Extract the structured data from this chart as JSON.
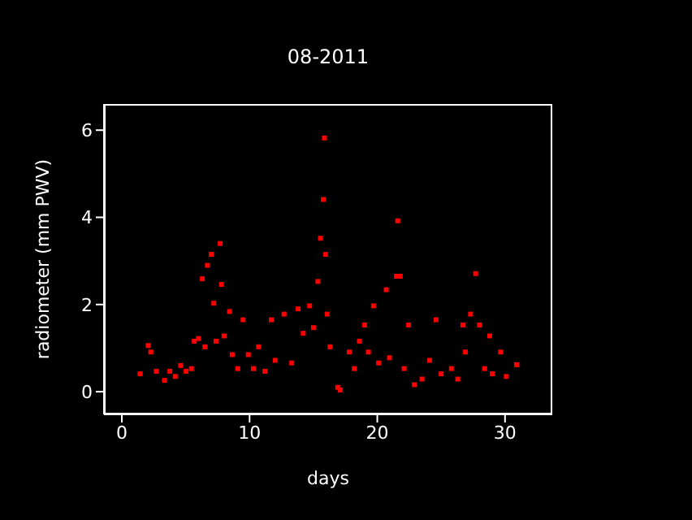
{
  "chart_data": {
    "type": "scatter",
    "title": "08-2011",
    "xlabel": "days",
    "ylabel": "radiometer (mm PWV)",
    "x": [
      1.43,
      2.06,
      2.27,
      2.7,
      3.34,
      3.76,
      4.18,
      4.6,
      5.03,
      5.45,
      5.67,
      6.0,
      6.3,
      6.5,
      6.7,
      7.0,
      7.2,
      7.37,
      7.7,
      7.8,
      8.0,
      8.43,
      8.64,
      9.07,
      9.49,
      9.9,
      10.3,
      10.7,
      11.2,
      11.7,
      12.0,
      12.7,
      13.3,
      13.8,
      14.2,
      14.7,
      15.0,
      15.35,
      15.55,
      15.77,
      15.86,
      15.95,
      16.07,
      16.3,
      16.9,
      17.1,
      17.8,
      18.2,
      18.6,
      19.0,
      19.3,
      19.7,
      20.1,
      20.7,
      20.95,
      21.5,
      21.6,
      21.8,
      22.1,
      22.45,
      22.9,
      23.5,
      24.1,
      24.6,
      25.0,
      25.8,
      26.3,
      26.7,
      26.9,
      27.3,
      27.7,
      28.0,
      28.4,
      28.8,
      29.0,
      29.65,
      30.1,
      30.9
    ],
    "series": [
      {
        "color": "#ff0000",
        "values": [
          0.41,
          1.06,
          0.91,
          0.47,
          0.26,
          0.47,
          0.35,
          0.6,
          0.47,
          0.53,
          1.16,
          1.22,
          2.59,
          1.03,
          2.9,
          3.15,
          2.03,
          1.16,
          3.4,
          2.46,
          1.28,
          1.84,
          0.85,
          0.53,
          1.65,
          0.85,
          0.53,
          1.03,
          0.47,
          1.65,
          0.72,
          1.78,
          0.66,
          1.9,
          1.34,
          1.97,
          1.47,
          2.53,
          3.52,
          4.41,
          5.82,
          3.15,
          1.78,
          1.03,
          0.1,
          0.04,
          0.91,
          0.53,
          1.16,
          1.53,
          0.91,
          1.97,
          0.66,
          2.34,
          0.78,
          2.65,
          3.92,
          2.65,
          0.53,
          1.53,
          0.16,
          0.29,
          0.72,
          1.65,
          0.41,
          0.53,
          0.29,
          1.53,
          0.91,
          1.78,
          2.71,
          1.53,
          0.53,
          1.28,
          0.41,
          0.91,
          0.35,
          0.62
        ]
      }
    ],
    "xlim": [
      -1.4,
      33.7
    ],
    "ylim": [
      -0.52,
      6.6
    ],
    "xticks": [
      0,
      10,
      20,
      30
    ],
    "yticks": [
      0,
      2,
      4,
      6
    ],
    "marker": "square"
  }
}
